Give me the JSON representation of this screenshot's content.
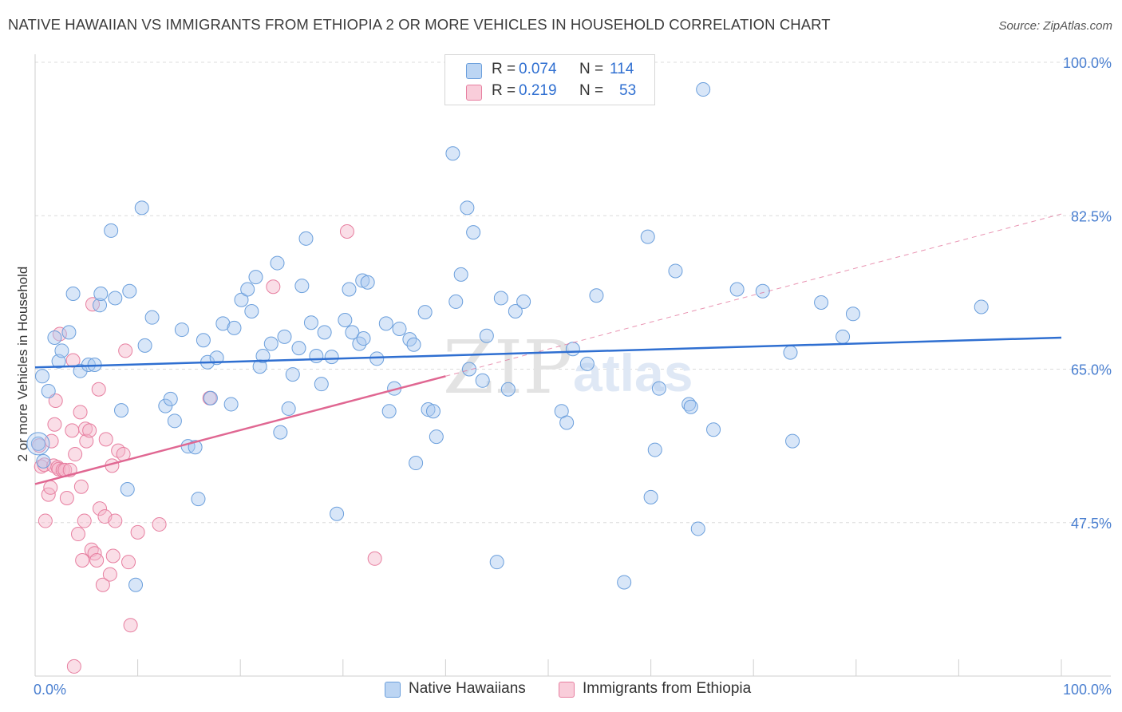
{
  "title": "NATIVE HAWAIIAN VS IMMIGRANTS FROM ETHIOPIA 2 OR MORE VEHICLES IN HOUSEHOLD CORRELATION CHART",
  "source": "Source: ZipAtlas.com",
  "watermark": {
    "zip": "ZIP",
    "atlas": "atlas"
  },
  "legend": {
    "rows": [
      {
        "r_label": "R = ",
        "r_value": "0.074",
        "n_label": "N = ",
        "n_value": "114",
        "color": "#a8c8f0"
      },
      {
        "r_label": "R = ",
        "r_value": "0.219",
        "n_label": "N = ",
        "n_value": "53",
        "color": "#f5b6ca"
      }
    ]
  },
  "bottom_legend": [
    {
      "label": "Native Hawaiians",
      "color": "#a8c8f0"
    },
    {
      "label": "Immigrants from Ethiopia",
      "color": "#f5b6ca"
    }
  ],
  "colors": {
    "blue_fill": "#a8c8f0",
    "blue_stroke": "#6b9fdc",
    "blue_line": "#2f6fd1",
    "pink_fill": "#f5b6ca",
    "pink_stroke": "#e77fa0",
    "pink_line": "#e06792",
    "grid": "#dcdcdc",
    "tick_text": "#4a7fd0"
  },
  "chart_data": {
    "type": "scatter",
    "title": "NATIVE HAWAIIAN VS IMMIGRANTS FROM ETHIOPIA 2 OR MORE VEHICLES IN HOUSEHOLD CORRELATION CHART",
    "xlabel": "",
    "ylabel": "2 or more Vehicles in Household",
    "xlim": [
      0,
      100
    ],
    "ylim": [
      30,
      100
    ],
    "x_tick_labels": [
      "0.0%",
      "100.0%"
    ],
    "y_ticks": [
      47.5,
      65.0,
      82.5,
      100.0
    ],
    "y_tick_labels": [
      "47.5%",
      "65.0%",
      "82.5%",
      "100.0%"
    ],
    "series": [
      {
        "name": "Native Hawaiians",
        "R": 0.074,
        "N": 114,
        "trend": {
          "x": [
            0,
            100
          ],
          "y": [
            65.2,
            68.6
          ]
        },
        "points": [
          [
            0.3,
            56.5
          ],
          [
            0.8,
            54.5
          ],
          [
            0.7,
            64.2
          ],
          [
            1.3,
            62.5
          ],
          [
            1.9,
            68.6
          ],
          [
            2.3,
            65.9
          ],
          [
            2.6,
            67.1
          ],
          [
            3.3,
            69.2
          ],
          [
            3.7,
            73.6
          ],
          [
            4.4,
            64.8
          ],
          [
            5.2,
            65.5
          ],
          [
            5.8,
            65.5
          ],
          [
            6.3,
            72.3
          ],
          [
            6.4,
            73.6
          ],
          [
            7.4,
            80.8
          ],
          [
            7.8,
            73.1
          ],
          [
            8.4,
            60.3
          ],
          [
            9.0,
            51.3
          ],
          [
            9.2,
            73.9
          ],
          [
            9.8,
            40.4
          ],
          [
            10.4,
            83.4
          ],
          [
            10.7,
            67.7
          ],
          [
            11.4,
            70.9
          ],
          [
            12.7,
            60.8
          ],
          [
            13.2,
            61.6
          ],
          [
            13.6,
            59.1
          ],
          [
            14.3,
            69.5
          ],
          [
            14.9,
            56.2
          ],
          [
            15.6,
            56.1
          ],
          [
            15.9,
            50.2
          ],
          [
            16.4,
            68.3
          ],
          [
            16.8,
            65.8
          ],
          [
            17.1,
            61.7
          ],
          [
            17.7,
            66.3
          ],
          [
            18.3,
            70.2
          ],
          [
            19.1,
            61.0
          ],
          [
            19.4,
            69.7
          ],
          [
            20.1,
            72.9
          ],
          [
            20.7,
            74.1
          ],
          [
            21.1,
            71.6
          ],
          [
            21.5,
            75.5
          ],
          [
            21.9,
            65.3
          ],
          [
            22.2,
            66.5
          ],
          [
            23.0,
            67.9
          ],
          [
            23.6,
            77.1
          ],
          [
            23.9,
            57.8
          ],
          [
            24.3,
            68.7
          ],
          [
            24.7,
            60.5
          ],
          [
            25.1,
            64.4
          ],
          [
            25.7,
            67.4
          ],
          [
            26.0,
            74.5
          ],
          [
            26.4,
            79.9
          ],
          [
            26.9,
            70.3
          ],
          [
            27.4,
            66.5
          ],
          [
            27.9,
            63.3
          ],
          [
            28.2,
            69.2
          ],
          [
            28.9,
            66.4
          ],
          [
            29.4,
            48.5
          ],
          [
            30.2,
            70.6
          ],
          [
            30.6,
            74.1
          ],
          [
            30.9,
            69.2
          ],
          [
            31.6,
            67.9
          ],
          [
            31.9,
            75.1
          ],
          [
            32.0,
            68.5
          ],
          [
            32.4,
            74.9
          ],
          [
            33.3,
            66.2
          ],
          [
            34.2,
            70.2
          ],
          [
            34.5,
            60.2
          ],
          [
            35.0,
            62.8
          ],
          [
            35.5,
            69.6
          ],
          [
            36.5,
            68.4
          ],
          [
            36.9,
            67.8
          ],
          [
            37.1,
            54.3
          ],
          [
            38.0,
            71.5
          ],
          [
            38.3,
            60.4
          ],
          [
            38.8,
            60.2
          ],
          [
            39.1,
            57.3
          ],
          [
            40.7,
            89.6
          ],
          [
            41.0,
            72.7
          ],
          [
            41.5,
            75.8
          ],
          [
            42.1,
            83.4
          ],
          [
            42.3,
            65.0
          ],
          [
            42.7,
            80.6
          ],
          [
            43.6,
            63.7
          ],
          [
            44.0,
            68.8
          ],
          [
            45.0,
            43.0
          ],
          [
            45.4,
            73.1
          ],
          [
            46.1,
            62.7
          ],
          [
            46.8,
            71.6
          ],
          [
            47.6,
            72.7
          ],
          [
            51.3,
            60.2
          ],
          [
            51.8,
            58.9
          ],
          [
            52.4,
            67.3
          ],
          [
            53.8,
            65.6
          ],
          [
            54.7,
            73.4
          ],
          [
            57.4,
            40.7
          ],
          [
            59.7,
            80.1
          ],
          [
            60.0,
            50.4
          ],
          [
            60.4,
            55.8
          ],
          [
            60.8,
            62.8
          ],
          [
            62.4,
            76.2
          ],
          [
            63.7,
            61.0
          ],
          [
            63.9,
            60.7
          ],
          [
            64.6,
            46.8
          ],
          [
            65.1,
            96.9
          ],
          [
            66.1,
            58.1
          ],
          [
            68.4,
            74.1
          ],
          [
            70.9,
            73.9
          ],
          [
            73.6,
            66.9
          ],
          [
            73.8,
            56.8
          ],
          [
            76.6,
            72.6
          ],
          [
            78.7,
            68.7
          ],
          [
            79.7,
            71.3
          ],
          [
            92.2,
            72.1
          ]
        ]
      },
      {
        "name": "Immigrants from Ethiopia",
        "R": 0.219,
        "N": 53,
        "trend": {
          "x": [
            0,
            40
          ],
          "y": [
            51.9,
            64.2
          ]
        },
        "trend_extension": {
          "x": [
            40,
            100
          ],
          "y": [
            64.2,
            82.7
          ]
        },
        "points": [
          [
            0.4,
            56.3
          ],
          [
            0.6,
            53.9
          ],
          [
            0.9,
            54.1
          ],
          [
            1.0,
            47.7
          ],
          [
            1.3,
            50.7
          ],
          [
            1.5,
            51.5
          ],
          [
            1.6,
            56.8
          ],
          [
            1.8,
            54.0
          ],
          [
            1.9,
            58.7
          ],
          [
            2.0,
            61.4
          ],
          [
            2.2,
            53.8
          ],
          [
            2.3,
            53.6
          ],
          [
            2.4,
            69.0
          ],
          [
            2.7,
            53.5
          ],
          [
            2.9,
            53.5
          ],
          [
            3.1,
            50.3
          ],
          [
            3.4,
            53.5
          ],
          [
            3.6,
            58.0
          ],
          [
            3.7,
            66.0
          ],
          [
            3.8,
            31.1
          ],
          [
            3.9,
            55.3
          ],
          [
            4.2,
            46.2
          ],
          [
            4.4,
            60.1
          ],
          [
            4.5,
            51.6
          ],
          [
            4.6,
            43.2
          ],
          [
            4.8,
            47.7
          ],
          [
            4.9,
            58.2
          ],
          [
            5.0,
            56.8
          ],
          [
            5.3,
            58.0
          ],
          [
            5.5,
            44.4
          ],
          [
            5.6,
            72.4
          ],
          [
            5.8,
            44.0
          ],
          [
            6.0,
            43.2
          ],
          [
            6.2,
            62.7
          ],
          [
            6.3,
            49.1
          ],
          [
            6.6,
            40.4
          ],
          [
            6.8,
            48.2
          ],
          [
            6.9,
            57.0
          ],
          [
            7.3,
            41.6
          ],
          [
            7.5,
            54.0
          ],
          [
            7.6,
            43.7
          ],
          [
            7.8,
            47.7
          ],
          [
            8.1,
            55.7
          ],
          [
            8.6,
            55.3
          ],
          [
            8.8,
            67.1
          ],
          [
            9.1,
            43.0
          ],
          [
            10.0,
            46.4
          ],
          [
            17.0,
            61.7
          ],
          [
            23.2,
            74.4
          ],
          [
            30.4,
            80.7
          ],
          [
            33.1,
            43.4
          ],
          [
            12.1,
            47.3
          ],
          [
            9.3,
            35.8
          ]
        ]
      }
    ]
  }
}
